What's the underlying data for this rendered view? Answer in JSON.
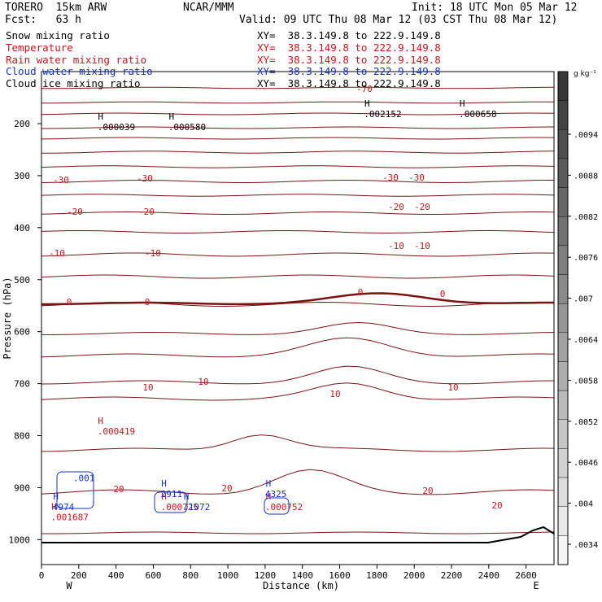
{
  "header": {
    "model": "TORERO  15km ARW",
    "center": "NCAR/MMM",
    "init": "Init: 18 UTC Mon 05 Mar 12",
    "fcst": "Fcst:   63 h",
    "valid": "Valid: 09 UTC Thu 08 Mar 12 (03 CST Thu 08 Mar 12)"
  },
  "fields": [
    {
      "name": "Snow mixing ratio",
      "xy": "XY=  38.3.149.8 to 222.9.149.8",
      "color": "#000000"
    },
    {
      "name": "Temperature",
      "xy": "XY=  38.3.149.8 to 222.9.149.8",
      "color": "#c8141e"
    },
    {
      "name": "Rain water mixing ratio",
      "xy": "XY=  38.3.149.8 to 222.9.149.8",
      "color": "#c8141e"
    },
    {
      "name": "Cloud water mixing ratio",
      "xy": "XY=  38.3.149.8 to 222.9.149.8",
      "color": "#1432c8"
    },
    {
      "name": "Cloud ice mixing ratio",
      "xy": "XY=  38.3.149.8 to 222.9.149.8",
      "color": "#000000"
    }
  ],
  "colors": {
    "temperature": "#7a1414",
    "temperature_label": "#c8141e",
    "cloud_water": "#1432c8",
    "rain_label": "#c8141e",
    "terrain": "#000000"
  },
  "chart_data": {
    "type": "contour",
    "xlabel": "Distance (km)",
    "ylabel": "Pressure (hPa)",
    "xlim": [
      0,
      2750
    ],
    "ylim": [
      1050,
      150
    ],
    "x_ticks": [
      0,
      200,
      400,
      600,
      800,
      1000,
      1200,
      1400,
      1600,
      1800,
      2000,
      2200,
      2400,
      2600
    ],
    "y_ticks": [
      200,
      300,
      400,
      500,
      600,
      700,
      800,
      900,
      1000
    ],
    "end_labels": {
      "left": "W",
      "right": "E"
    },
    "colorbar": {
      "unit": "g kg⁻¹",
      "labels": [
        ".0094",
        ".0088",
        ".0082",
        ".0076",
        ".007",
        ".0064",
        ".0058",
        ".0052",
        ".0046",
        ".004",
        ".0034"
      ]
    },
    "temperature_labels": [
      "-70",
      "-30",
      "-20",
      "-10",
      "0",
      "10",
      "20"
    ],
    "maxima": [
      {
        "field": "snow",
        "x": 300,
        "p": 205,
        "value": ".000039"
      },
      {
        "field": "snow",
        "x": 680,
        "p": 205,
        "value": ".000580"
      },
      {
        "field": "snow",
        "x": 1730,
        "p": 180,
        "value": ".002152"
      },
      {
        "field": "snow",
        "x": 2240,
        "p": 180,
        "value": ".000658"
      },
      {
        "field": "rain",
        "x": 300,
        "p": 790,
        "value": ".000419"
      },
      {
        "field": "rain",
        "x": 50,
        "p": 955,
        "value": ".001687"
      },
      {
        "field": "rain",
        "x": 640,
        "p": 935,
        "value": ".000725"
      },
      {
        "field": "rain",
        "x": 1200,
        "p": 935,
        "value": ".000752"
      },
      {
        "field": "cloud_water",
        "x": 60,
        "p": 935,
        "value": "4974"
      },
      {
        "field": "cloud_water",
        "x": 640,
        "p": 910,
        "value": "2911"
      },
      {
        "field": "cloud_water",
        "x": 760,
        "p": 935,
        "value": ".1072"
      },
      {
        "field": "cloud_water",
        "x": 1200,
        "p": 910,
        "value": "4325"
      },
      {
        "field": "cloud_water",
        "x": 170,
        "p": 880,
        "value": ".001"
      }
    ]
  }
}
